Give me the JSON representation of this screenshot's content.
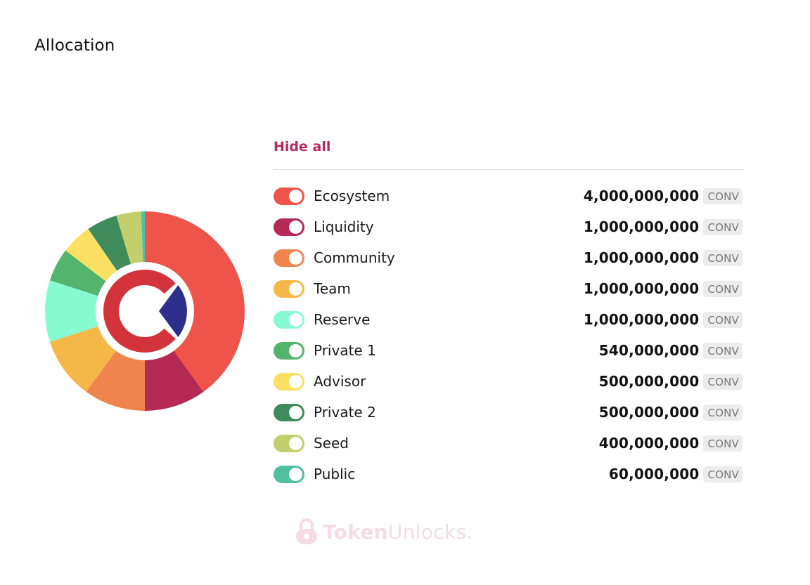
{
  "page": {
    "title": "Allocation"
  },
  "legend": {
    "hide_all_label": "Hide all"
  },
  "brand": {
    "watermark_bold": "Token",
    "watermark_light": "Unlocks."
  },
  "colors": {
    "accent": "#b9285a",
    "center_logo_red": "#d3343c",
    "center_logo_navy": "#2e2f8c"
  },
  "chart_data": {
    "type": "pie",
    "title": "Allocation",
    "unit": "CONV",
    "legend_position": "right",
    "series": [
      {
        "name": "Ecosystem",
        "value": 4000000000,
        "display": "4,000,000,000",
        "color": "#ee5449",
        "enabled": true
      },
      {
        "name": "Liquidity",
        "value": 1000000000,
        "display": "1,000,000,000",
        "color": "#b52a54",
        "enabled": true
      },
      {
        "name": "Community",
        "value": 1000000000,
        "display": "1,000,000,000",
        "color": "#f0844d",
        "enabled": true
      },
      {
        "name": "Team",
        "value": 1000000000,
        "display": "1,000,000,000",
        "color": "#f5b848",
        "enabled": true
      },
      {
        "name": "Reserve",
        "value": 1000000000,
        "display": "1,000,000,000",
        "color": "#86fbd1",
        "enabled": true
      },
      {
        "name": "Private 1",
        "value": 540000000,
        "display": "540,000,000",
        "color": "#52b46d",
        "enabled": true
      },
      {
        "name": "Advisor",
        "value": 500000000,
        "display": "500,000,000",
        "color": "#fce063",
        "enabled": true
      },
      {
        "name": "Private 2",
        "value": 500000000,
        "display": "500,000,000",
        "color": "#3f8b5c",
        "enabled": true
      },
      {
        "name": "Seed",
        "value": 400000000,
        "display": "400,000,000",
        "color": "#c3cf6c",
        "enabled": true
      },
      {
        "name": "Public",
        "value": 60000000,
        "display": "60,000,000",
        "color": "#4fc0a0",
        "enabled": true
      }
    ]
  }
}
